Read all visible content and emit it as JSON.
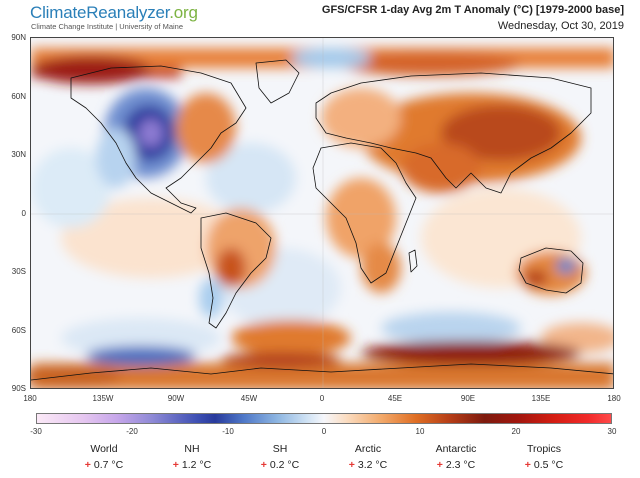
{
  "header": {
    "brand_main": "ClimateReanalyzer",
    "brand_tld": ".org",
    "brand_sub": "Climate Change Institute | University of Maine",
    "title": "GFS/CFSR 1-day Avg 2m T Anomaly (°C) [1979-2000 base]",
    "date": "Wednesday, Oct 30, 2019"
  },
  "map": {
    "lat_labels": [
      "90N",
      "60N",
      "30N",
      "0",
      "30S",
      "60S",
      "90S"
    ],
    "lon_labels": [
      "180",
      "135W",
      "90W",
      "45W",
      "0",
      "45E",
      "90E",
      "135E",
      "180"
    ],
    "colors": {
      "ocean_neutral": "#f4f6fa",
      "warm": "#e07a2e",
      "strong_warm": "#8b1a10",
      "cool": "#9ec6ea",
      "strong_cool": "#2b3a9c",
      "coast": "#111111"
    }
  },
  "colorbar": {
    "ticks": [
      "-30",
      "-20",
      "-10",
      "0",
      "10",
      "20",
      "30"
    ],
    "range": [
      -30,
      30
    ],
    "unit": "°C"
  },
  "stats": [
    {
      "name": "World",
      "sign": "+",
      "value": "0.7 °C"
    },
    {
      "name": "NH",
      "sign": "+",
      "value": "1.2 °C"
    },
    {
      "name": "SH",
      "sign": "+",
      "value": "0.2 °C"
    },
    {
      "name": "Arctic",
      "sign": "+",
      "value": "3.2 °C"
    },
    {
      "name": "Antarctic",
      "sign": "+",
      "value": "2.3 °C"
    },
    {
      "name": "Tropics",
      "sign": "+",
      "value": "0.5 °C"
    }
  ]
}
